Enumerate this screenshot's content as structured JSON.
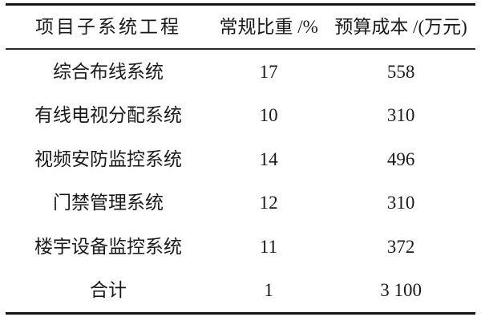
{
  "table": {
    "columns": [
      {
        "label": "项目子系统工程"
      },
      {
        "label": "常规比重 /%"
      },
      {
        "label": "预算成本 /(万元)"
      }
    ],
    "rows": [
      {
        "name": "综合布线系统",
        "weight": "17",
        "cost": "558"
      },
      {
        "name": "有线电视分配系统",
        "weight": "10",
        "cost": "310"
      },
      {
        "name": "视频安防监控系统",
        "weight": "14",
        "cost": "496"
      },
      {
        "name": "门禁管理系统",
        "weight": "12",
        "cost": "310"
      },
      {
        "name": "楼宇设备监控系统",
        "weight": "11",
        "cost": "372"
      },
      {
        "name": "合计",
        "weight": "1",
        "cost": "3 100"
      }
    ]
  },
  "colors": {
    "background": "#ffffff",
    "text": "#1a1a1a",
    "rule": "#151515"
  }
}
